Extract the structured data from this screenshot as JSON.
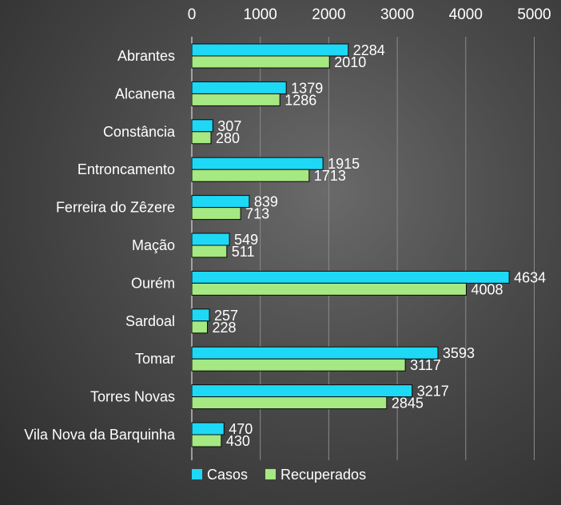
{
  "chart_data": {
    "type": "bar",
    "orientation": "horizontal",
    "categories": [
      "Abrantes",
      "Alcanena",
      "Constância",
      "Entroncamento",
      "Ferreira do Zêzere",
      "Mação",
      "Ourém",
      "Sardoal",
      "Tomar",
      "Torres Novas",
      "Vila Nova da Barquinha"
    ],
    "series": [
      {
        "name": "Casos",
        "color": "#1ed9f5",
        "values": [
          2284,
          1379,
          307,
          1915,
          839,
          549,
          4634,
          257,
          3593,
          3217,
          470
        ]
      },
      {
        "name": "Recuperados",
        "color": "#a6e882",
        "values": [
          2010,
          1286,
          280,
          1713,
          713,
          511,
          4008,
          228,
          3117,
          2845,
          430
        ]
      }
    ],
    "xlim": [
      0,
      5000
    ],
    "x_ticks": [
      "0",
      "1000",
      "2000",
      "3000",
      "4000",
      "5000"
    ],
    "x_tick_values": [
      0,
      1000,
      2000,
      3000,
      4000,
      5000
    ],
    "x_axis_position": "top",
    "grid": true,
    "legend": "bottom-left",
    "title": "",
    "xlabel": "",
    "ylabel": ""
  }
}
